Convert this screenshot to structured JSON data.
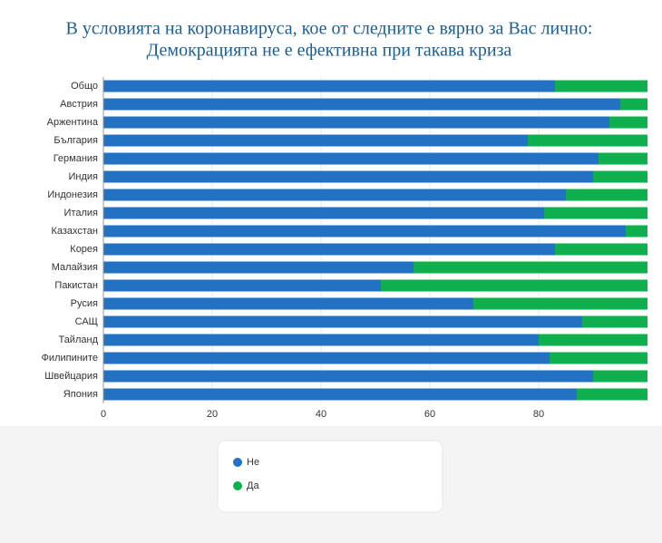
{
  "chart_data": {
    "type": "stacked_barh",
    "title": "В условията на коронавируса, кое от следните е вярно за Вас лично:",
    "subtitle": "Демокрацията не е ефективна при такава криза",
    "categories": [
      "Общо",
      "Австрия",
      "Аржентина",
      "България",
      "Германия",
      "Индия",
      "Индонезия",
      "Италия",
      "Казахстан",
      "Корея",
      "Малайзия",
      "Пакистан",
      "Русия",
      "САЩ",
      "Тайланд",
      "Филипините",
      "Швейцария",
      "Япония"
    ],
    "series": [
      {
        "name": "Не",
        "color": "#2271c2",
        "values": [
          83,
          95,
          93,
          78,
          91,
          90,
          85,
          81,
          96,
          83,
          57,
          51,
          68,
          88,
          80,
          82,
          90,
          87
        ]
      },
      {
        "name": "Да",
        "color": "#0faf4f",
        "values": [
          17,
          5,
          7,
          22,
          9,
          10,
          15,
          19,
          4,
          17,
          43,
          49,
          32,
          12,
          20,
          18,
          10,
          13
        ]
      }
    ],
    "xlim": [
      0,
      100
    ],
    "xticks": [
      0,
      20,
      40,
      60,
      80
    ],
    "grid": true
  }
}
